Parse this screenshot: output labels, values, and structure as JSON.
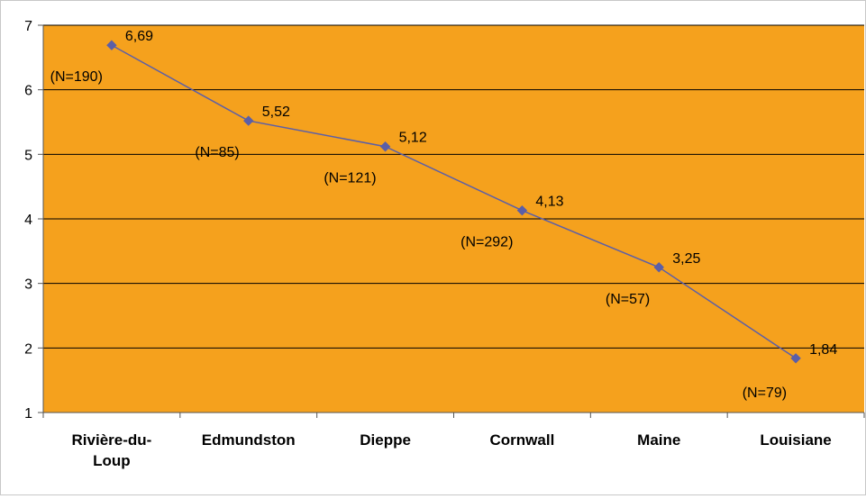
{
  "chart_data": {
    "type": "line",
    "title": "",
    "xlabel": "",
    "ylabel": "",
    "categories": [
      [
        "Rivière-du-",
        "Loup"
      ],
      [
        "Edmundston"
      ],
      [
        "Dieppe"
      ],
      [
        "Cornwall"
      ],
      [
        "Maine"
      ],
      [
        "Louisiane"
      ]
    ],
    "series": [
      {
        "values": [
          6.69,
          5.52,
          5.12,
          4.13,
          3.25,
          1.84
        ],
        "value_labels": [
          "6,69",
          "5,52",
          "5,12",
          "4,13",
          "3,25",
          "1,84"
        ],
        "sample_labels": [
          "(N=190)",
          "(N=85)",
          "(N=121)",
          "(N=292)",
          "(N=57)",
          "(N=79)"
        ],
        "color": "#5b5fa8"
      }
    ],
    "ylim": [
      1,
      7
    ],
    "yticks": [
      "1",
      "2",
      "3",
      "4",
      "5",
      "6",
      "7"
    ],
    "grid": true,
    "legend": "none",
    "plot_background": "#f5a11d",
    "gridline_color": "#000000"
  }
}
